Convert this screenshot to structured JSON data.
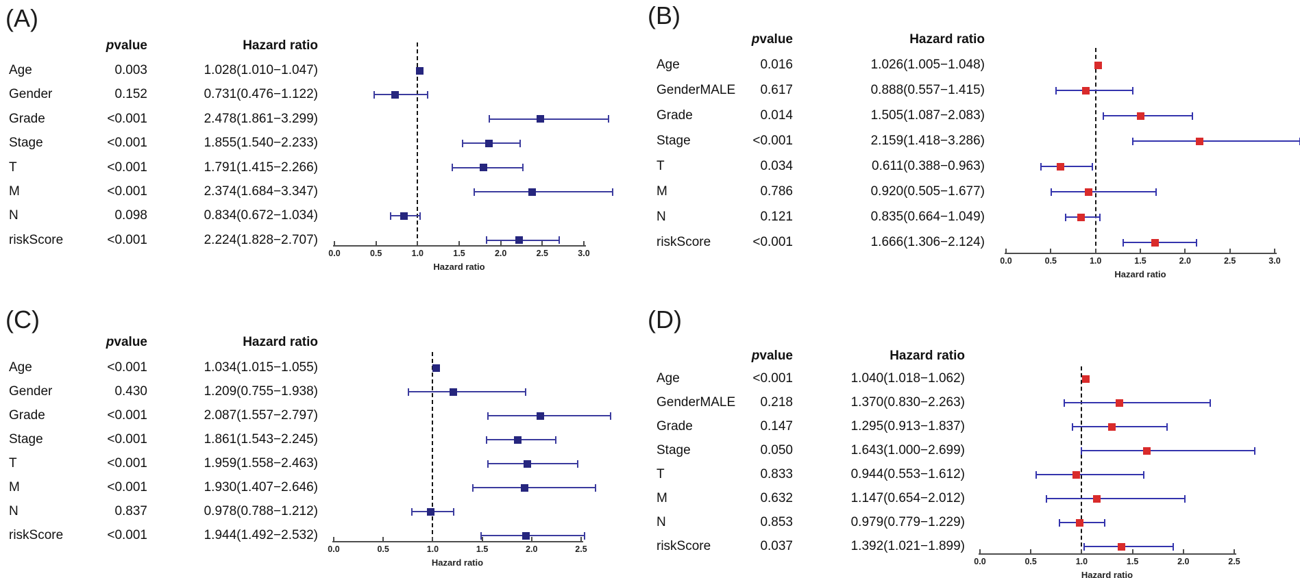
{
  "figure": {
    "colors": {
      "background": "#ffffff",
      "axis": "#4d4d4d",
      "reference_line": "#141414",
      "text": "#000000"
    }
  },
  "chart_data": {
    "type": "scatter",
    "variant": "forest_plot_grid",
    "panels": [
      {
        "panel_label": "(A)",
        "columns": {
          "pvalue_header": "pvalue",
          "hazard_ratio_header": "Hazard ratio"
        },
        "axis": {
          "label": "Hazard ratio",
          "min": 0,
          "max": 3,
          "ref_line": 1.0,
          "ticks": [
            0,
            0.5,
            1.0,
            1.5,
            2.0,
            2.5,
            3.0
          ],
          "tick_labels": [
            "0.0",
            "0.5",
            "1.0",
            "1.5",
            "2.0",
            "2.5",
            "3.0"
          ]
        },
        "colors": {
          "marker": "#26267e",
          "ci_line": "#3b3b9e"
        },
        "rows": [
          {
            "name": "Age",
            "pvalue": "0.003",
            "hr_text": "1.028(1.010−1.047)",
            "hr": 1.028,
            "ci_low": 1.01,
            "ci_high": 1.047
          },
          {
            "name": "Gender",
            "pvalue": "0.152",
            "hr_text": "0.731(0.476−1.122)",
            "hr": 0.731,
            "ci_low": 0.476,
            "ci_high": 1.122
          },
          {
            "name": "Grade",
            "pvalue": "<0.001",
            "hr_text": "2.478(1.861−3.299)",
            "hr": 2.478,
            "ci_low": 1.861,
            "ci_high": 3.299
          },
          {
            "name": "Stage",
            "pvalue": "<0.001",
            "hr_text": "1.855(1.540−2.233)",
            "hr": 1.855,
            "ci_low": 1.54,
            "ci_high": 2.233
          },
          {
            "name": "T",
            "pvalue": "<0.001",
            "hr_text": "1.791(1.415−2.266)",
            "hr": 1.791,
            "ci_low": 1.415,
            "ci_high": 2.266
          },
          {
            "name": "M",
            "pvalue": "<0.001",
            "hr_text": "2.374(1.684−3.347)",
            "hr": 2.374,
            "ci_low": 1.684,
            "ci_high": 3.347
          },
          {
            "name": "N",
            "pvalue": "0.098",
            "hr_text": "0.834(0.672−1.034)",
            "hr": 0.834,
            "ci_low": 0.672,
            "ci_high": 1.034
          },
          {
            "name": "riskScore",
            "pvalue": "<0.001",
            "hr_text": "2.224(1.828−2.707)",
            "hr": 2.224,
            "ci_low": 1.828,
            "ci_high": 2.707
          }
        ]
      },
      {
        "panel_label": "(B)",
        "columns": {
          "pvalue_header": "pvalue",
          "hazard_ratio_header": "Hazard ratio"
        },
        "axis": {
          "label": "Hazard ratio",
          "min": 0,
          "max": 3,
          "ref_line": 1.0,
          "ticks": [
            0,
            0.5,
            1.0,
            1.5,
            2.0,
            2.5,
            3.0
          ],
          "tick_labels": [
            "0.0",
            "0.5",
            "1.0",
            "1.5",
            "2.0",
            "2.5",
            "3.0"
          ]
        },
        "colors": {
          "marker": "#d92b2b",
          "ci_line": "#3434ad"
        },
        "rows": [
          {
            "name": "Age",
            "pvalue": "0.016",
            "hr_text": "1.026(1.005−1.048)",
            "hr": 1.026,
            "ci_low": 1.005,
            "ci_high": 1.048
          },
          {
            "name": "GenderMALE",
            "pvalue": "0.617",
            "hr_text": "0.888(0.557−1.415)",
            "hr": 0.888,
            "ci_low": 0.557,
            "ci_high": 1.415
          },
          {
            "name": "Grade",
            "pvalue": "0.014",
            "hr_text": "1.505(1.087−2.083)",
            "hr": 1.505,
            "ci_low": 1.087,
            "ci_high": 2.083
          },
          {
            "name": "Stage",
            "pvalue": "<0.001",
            "hr_text": "2.159(1.418−3.286)",
            "hr": 2.159,
            "ci_low": 1.418,
            "ci_high": 3.286
          },
          {
            "name": "T",
            "pvalue": "0.034",
            "hr_text": "0.611(0.388−0.963)",
            "hr": 0.611,
            "ci_low": 0.388,
            "ci_high": 0.963
          },
          {
            "name": "M",
            "pvalue": "0.786",
            "hr_text": "0.920(0.505−1.677)",
            "hr": 0.92,
            "ci_low": 0.505,
            "ci_high": 1.677
          },
          {
            "name": "N",
            "pvalue": "0.121",
            "hr_text": "0.835(0.664−1.049)",
            "hr": 0.835,
            "ci_low": 0.664,
            "ci_high": 1.049
          },
          {
            "name": "riskScore",
            "pvalue": "<0.001",
            "hr_text": "1.666(1.306−2.124)",
            "hr": 1.666,
            "ci_low": 1.306,
            "ci_high": 2.124
          }
        ]
      },
      {
        "panel_label": "(C)",
        "columns": {
          "pvalue_header": "pvalue",
          "hazard_ratio_header": "Hazard ratio"
        },
        "axis": {
          "label": "Hazard ratio",
          "min": 0,
          "max": 2.5,
          "ref_line": 1.0,
          "ticks": [
            0,
            0.5,
            1.0,
            1.5,
            2.0,
            2.5
          ],
          "tick_labels": [
            "0.0",
            "0.5",
            "1.0",
            "1.5",
            "2.0",
            "2.5"
          ]
        },
        "colors": {
          "marker": "#26267e",
          "ci_line": "#3b3b9e"
        },
        "rows": [
          {
            "name": "Age",
            "pvalue": "<0.001",
            "hr_text": "1.034(1.015−1.055)",
            "hr": 1.034,
            "ci_low": 1.015,
            "ci_high": 1.055
          },
          {
            "name": "Gender",
            "pvalue": "0.430",
            "hr_text": "1.209(0.755−1.938)",
            "hr": 1.209,
            "ci_low": 0.755,
            "ci_high": 1.938
          },
          {
            "name": "Grade",
            "pvalue": "<0.001",
            "hr_text": "2.087(1.557−2.797)",
            "hr": 2.087,
            "ci_low": 1.557,
            "ci_high": 2.797
          },
          {
            "name": "Stage",
            "pvalue": "<0.001",
            "hr_text": "1.861(1.543−2.245)",
            "hr": 1.861,
            "ci_low": 1.543,
            "ci_high": 2.245
          },
          {
            "name": "T",
            "pvalue": "<0.001",
            "hr_text": "1.959(1.558−2.463)",
            "hr": 1.959,
            "ci_low": 1.558,
            "ci_high": 2.463
          },
          {
            "name": "M",
            "pvalue": "<0.001",
            "hr_text": "1.930(1.407−2.646)",
            "hr": 1.93,
            "ci_low": 1.407,
            "ci_high": 2.646
          },
          {
            "name": "N",
            "pvalue": "0.837",
            "hr_text": "0.978(0.788−1.212)",
            "hr": 0.978,
            "ci_low": 0.788,
            "ci_high": 1.212
          },
          {
            "name": "riskScore",
            "pvalue": "<0.001",
            "hr_text": "1.944(1.492−2.532)",
            "hr": 1.944,
            "ci_low": 1.492,
            "ci_high": 2.532
          }
        ]
      },
      {
        "panel_label": "(D)",
        "columns": {
          "pvalue_header": "pvalue",
          "hazard_ratio_header": "Hazard ratio"
        },
        "axis": {
          "label": "Hazard ratio",
          "min": 0,
          "max": 2.5,
          "ref_line": 1.0,
          "ticks": [
            0,
            0.5,
            1.0,
            1.5,
            2.0,
            2.5
          ],
          "tick_labels": [
            "0.0",
            "0.5",
            "1.0",
            "1.5",
            "2.0",
            "2.5"
          ]
        },
        "colors": {
          "marker": "#d92b2b",
          "ci_line": "#3434ad"
        },
        "rows": [
          {
            "name": "Age",
            "pvalue": "<0.001",
            "hr_text": "1.040(1.018−1.062)",
            "hr": 1.04,
            "ci_low": 1.018,
            "ci_high": 1.062
          },
          {
            "name": "GenderMALE",
            "pvalue": "0.218",
            "hr_text": "1.370(0.830−2.263)",
            "hr": 1.37,
            "ci_low": 0.83,
            "ci_high": 2.263
          },
          {
            "name": "Grade",
            "pvalue": "0.147",
            "hr_text": "1.295(0.913−1.837)",
            "hr": 1.295,
            "ci_low": 0.913,
            "ci_high": 1.837
          },
          {
            "name": "Stage",
            "pvalue": "0.050",
            "hr_text": "1.643(1.000−2.699)",
            "hr": 1.643,
            "ci_low": 1.0,
            "ci_high": 2.699
          },
          {
            "name": "T",
            "pvalue": "0.833",
            "hr_text": "0.944(0.553−1.612)",
            "hr": 0.944,
            "ci_low": 0.553,
            "ci_high": 1.612
          },
          {
            "name": "M",
            "pvalue": "0.632",
            "hr_text": "1.147(0.654−2.012)",
            "hr": 1.147,
            "ci_low": 0.654,
            "ci_high": 2.012
          },
          {
            "name": "N",
            "pvalue": "0.853",
            "hr_text": "0.979(0.779−1.229)",
            "hr": 0.979,
            "ci_low": 0.779,
            "ci_high": 1.229
          },
          {
            "name": "riskScore",
            "pvalue": "0.037",
            "hr_text": "1.392(1.021−1.899)",
            "hr": 1.392,
            "ci_low": 1.021,
            "ci_high": 1.899
          }
        ]
      }
    ]
  }
}
